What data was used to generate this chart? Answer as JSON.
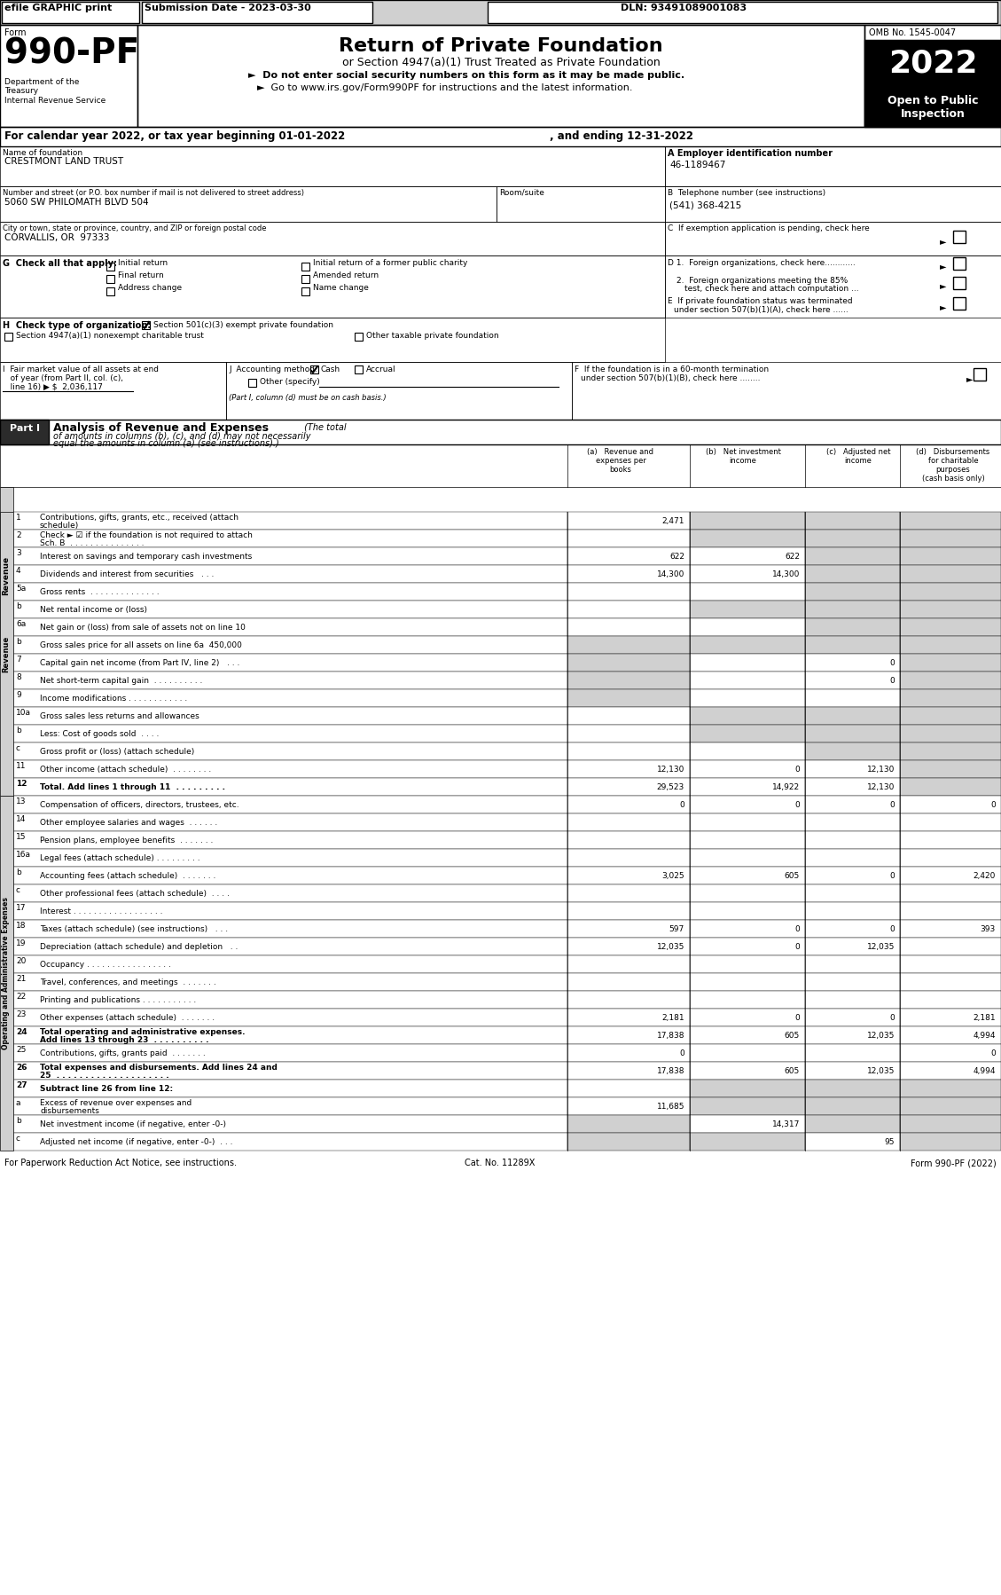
{
  "title_bar_text": "efile GRAPHIC print    Submission Date - 2023-03-30                                                    DLN: 93491089001083",
  "form_number": "990-PF",
  "form_label": "Form",
  "dept_text": "Department of the\nTreasury\nInternal Revenue Service",
  "main_title": "Return of Private Foundation",
  "subtitle": "or Section 4947(a)(1) Trust Treated as Private Foundation",
  "bullet1": "►  Do not enter social security numbers on this form as it may be made public.",
  "bullet2": "►  Go to www.irs.gov/Form990PF for instructions and the latest information.",
  "omb_text": "OMB No. 1545-0047",
  "year_text": "2022",
  "open_text": "Open to Public\nInspection",
  "cal_year_text": "For calendar year 2022, or tax year beginning 01-01-2022",
  "ending_text": ", and ending 12-31-2022",
  "name_label": "Name of foundation",
  "name_value": "CRESTMONT LAND TRUST",
  "ein_label": "A Employer identification number",
  "ein_value": "46-1189467",
  "address_label": "Number and street (or P.O. box number if mail is not delivered to street address)",
  "address_value": "5060 SW PHILOMATH BLVD 504",
  "room_label": "Room/suite",
  "phone_label": "B Telephone number (see instructions)",
  "phone_value": "(541) 368-4215",
  "city_label": "City or town, state or province, country, and ZIP or foreign postal code",
  "city_value": "CORVALLIS, OR  97333",
  "c_text": "C  If exemption application is pending, check here",
  "g_text": "G Check all that apply:",
  "g_options": [
    "Initial return",
    "Initial return of a former public charity",
    "Final return",
    "Amended return",
    "Address change",
    "Name change"
  ],
  "d1_text": "D 1.  Foreign organizations, check here............",
  "d2_text": "2.  Foreign organizations meeting the 85%\n     test, check here and attach computation ...",
  "e_text": "E  If private foundation status was terminated\n    under section 507(b)(1)(A), check here ......",
  "h_text": "H Check type of organization:",
  "h_option1": "Section 501(c)(3) exempt private foundation",
  "h_option2": "Section 4947(a)(1) nonexempt charitable trust",
  "h_option3": "Other taxable private foundation",
  "i_text": "I  Fair market value of all assets at end\n    of year (from Part II, col. (c),\n    line 16) ▶ $  2,036,117",
  "j_text": "J  Accounting method:",
  "j_cash": "Cash",
  "j_accrual": "Accrual",
  "j_other": "Other (specify)",
  "j_note": "(Part I, column (d) must be on cash basis.)",
  "f_text": "F  If the foundation is in a 60-month termination\n    under section 507(b)(1)(B), check here ........",
  "part1_label": "Part I",
  "part1_title": "Analysis of Revenue and Expenses",
  "part1_subtitle": "(The total\nof amounts in columns (b), (c), and (d) may not necessarily\nequal the amounts in column (a) (see instructions).)",
  "col_a": "(a)   Revenue and\nexpenses per\nbooks",
  "col_b": "(b)   Net investment\nincome",
  "col_c": "(c)   Adjusted net\nincome",
  "col_d": "(d)   Disbursements\nfor charitable\npurposes\n(cash basis only)",
  "revenue_label": "Revenue",
  "expenses_label": "Operating and Administrative Expenses",
  "rows": [
    {
      "num": "1",
      "label": "Contributions, gifts, grants, etc., received (attach\nschedule)",
      "a": "2,471",
      "b": "",
      "c": "",
      "d": "",
      "shade_b": true,
      "shade_c": true,
      "shade_d": true
    },
    {
      "num": "2",
      "label": "Check ► ☑ if the foundation is not required to attach\nSch. B  . . . . . . . . . . . . . . .",
      "a": "",
      "b": "",
      "c": "",
      "d": "",
      "shade_b": true,
      "shade_c": true,
      "shade_d": true
    },
    {
      "num": "3",
      "label": "Interest on savings and temporary cash investments",
      "a": "622",
      "b": "622",
      "c": "",
      "d": "",
      "shade_c": true,
      "shade_d": true
    },
    {
      "num": "4",
      "label": "Dividends and interest from securities   . . .",
      "a": "14,300",
      "b": "14,300",
      "c": "",
      "d": "",
      "shade_c": true,
      "shade_d": true
    },
    {
      "num": "5a",
      "label": "Gross rents  . . . . . . . . . . . . . .",
      "a": "",
      "b": "",
      "c": "",
      "d": "",
      "shade_c": true,
      "shade_d": true
    },
    {
      "num": "b",
      "label": "Net rental income or (loss)",
      "a": "",
      "b": "",
      "c": "",
      "d": "",
      "shade_b": true,
      "shade_c": true,
      "shade_d": true
    },
    {
      "num": "6a",
      "label": "Net gain or (loss) from sale of assets not on line 10",
      "a": "",
      "b": "",
      "c": "",
      "d": "",
      "shade_c": true,
      "shade_d": true
    },
    {
      "num": "b",
      "label": "Gross sales price for all assets on line 6a  450,000",
      "a": "",
      "b": "",
      "c": "",
      "d": "",
      "shade_a": true,
      "shade_b": true,
      "shade_c": true,
      "shade_d": true
    },
    {
      "num": "7",
      "label": "Capital gain net income (from Part IV, line 2)   . . .",
      "a": "",
      "b": "",
      "c": "0",
      "d": "",
      "shade_a": true,
      "shade_d": true
    },
    {
      "num": "8",
      "label": "Net short-term capital gain  . . . . . . . . . .",
      "a": "",
      "b": "",
      "c": "0",
      "d": "",
      "shade_a": true,
      "shade_d": true
    },
    {
      "num": "9",
      "label": "Income modifications . . . . . . . . . . . .",
      "a": "",
      "b": "",
      "c": "",
      "d": "",
      "shade_a": true,
      "shade_d": true
    },
    {
      "num": "10a",
      "label": "Gross sales less returns and allowances",
      "a": "",
      "b": "",
      "c": "",
      "d": "",
      "shade_b": true,
      "shade_c": true,
      "shade_d": true
    },
    {
      "num": "b",
      "label": "Less: Cost of goods sold  . . . .",
      "a": "",
      "b": "",
      "c": "",
      "d": "",
      "shade_b": true,
      "shade_c": true,
      "shade_d": true
    },
    {
      "num": "c",
      "label": "Gross profit or (loss) (attach schedule)",
      "a": "",
      "b": "",
      "c": "",
      "d": "",
      "shade_c": true,
      "shade_d": true
    },
    {
      "num": "11",
      "label": "Other income (attach schedule)  . . . . . . . .",
      "a": "12,130",
      "b": "0",
      "c": "12,130",
      "d": "",
      "shade_d": true
    },
    {
      "num": "12",
      "label": "Total. Add lines 1 through 11  . . . . . . . . .",
      "a": "29,523",
      "b": "14,922",
      "c": "12,130",
      "d": "",
      "shade_d": true,
      "bold": true
    },
    {
      "num": "13",
      "label": "Compensation of officers, directors, trustees, etc.",
      "a": "0",
      "b": "0",
      "c": "0",
      "d": "0"
    },
    {
      "num": "14",
      "label": "Other employee salaries and wages  . . . . . .",
      "a": "",
      "b": "",
      "c": "",
      "d": ""
    },
    {
      "num": "15",
      "label": "Pension plans, employee benefits  . . . . . . .",
      "a": "",
      "b": "",
      "c": "",
      "d": ""
    },
    {
      "num": "16a",
      "label": "Legal fees (attach schedule) . . . . . . . . .",
      "a": "",
      "b": "",
      "c": "",
      "d": ""
    },
    {
      "num": "b",
      "label": "Accounting fees (attach schedule)  . . . . . . .",
      "a": "3,025",
      "b": "605",
      "c": "0",
      "d": "2,420"
    },
    {
      "num": "c",
      "label": "Other professional fees (attach schedule)  . . . .",
      "a": "",
      "b": "",
      "c": "",
      "d": ""
    },
    {
      "num": "17",
      "label": "Interest . . . . . . . . . . . . . . . . . .",
      "a": "",
      "b": "",
      "c": "",
      "d": ""
    },
    {
      "num": "18",
      "label": "Taxes (attach schedule) (see instructions)   . . .",
      "a": "597",
      "b": "0",
      "c": "0",
      "d": "393"
    },
    {
      "num": "19",
      "label": "Depreciation (attach schedule) and depletion   . .",
      "a": "12,035",
      "b": "0",
      "c": "12,035",
      "d": ""
    },
    {
      "num": "20",
      "label": "Occupancy . . . . . . . . . . . . . . . . .",
      "a": "",
      "b": "",
      "c": "",
      "d": ""
    },
    {
      "num": "21",
      "label": "Travel, conferences, and meetings  . . . . . . .",
      "a": "",
      "b": "",
      "c": "",
      "d": ""
    },
    {
      "num": "22",
      "label": "Printing and publications . . . . . . . . . . .",
      "a": "",
      "b": "",
      "c": "",
      "d": ""
    },
    {
      "num": "23",
      "label": "Other expenses (attach schedule)  . . . . . . .",
      "a": "2,181",
      "b": "0",
      "c": "0",
      "d": "2,181"
    },
    {
      "num": "24",
      "label": "Total operating and administrative expenses.\nAdd lines 13 through 23  . . . . . . . . . .",
      "a": "17,838",
      "b": "605",
      "c": "12,035",
      "d": "4,994",
      "bold": true
    },
    {
      "num": "25",
      "label": "Contributions, gifts, grants paid  . . . . . . .",
      "a": "0",
      "b": "",
      "c": "",
      "d": "0"
    },
    {
      "num": "26",
      "label": "Total expenses and disbursements. Add lines 24 and\n25  . . . . . . . . . . . . . . . . . . . .",
      "a": "17,838",
      "b": "605",
      "c": "12,035",
      "d": "4,994",
      "bold": true
    },
    {
      "num": "27",
      "label": "Subtract line 26 from line 12:",
      "a": "",
      "b": "",
      "c": "",
      "d": "",
      "bold": true,
      "shade_b": true,
      "shade_c": true,
      "shade_d": true
    },
    {
      "num": "a",
      "label": "Excess of revenue over expenses and\ndisbursements",
      "a": "11,685",
      "b": "",
      "c": "",
      "d": "",
      "shade_b": true,
      "shade_c": true,
      "shade_d": true
    },
    {
      "num": "b",
      "label": "Net investment income (if negative, enter -0-)",
      "a": "",
      "b": "14,317",
      "c": "",
      "d": "",
      "shade_a": true,
      "shade_c": true,
      "shade_d": true
    },
    {
      "num": "c",
      "label": "Adjusted net income (if negative, enter -0-)  . . .",
      "a": "",
      "b": "",
      "c": "95",
      "d": "",
      "shade_a": true,
      "shade_b": true,
      "shade_d": true
    }
  ],
  "footer_left": "For Paperwork Reduction Act Notice, see instructions.",
  "footer_center": "Cat. No. 11289X",
  "footer_right": "Form 990-PF (2022)"
}
